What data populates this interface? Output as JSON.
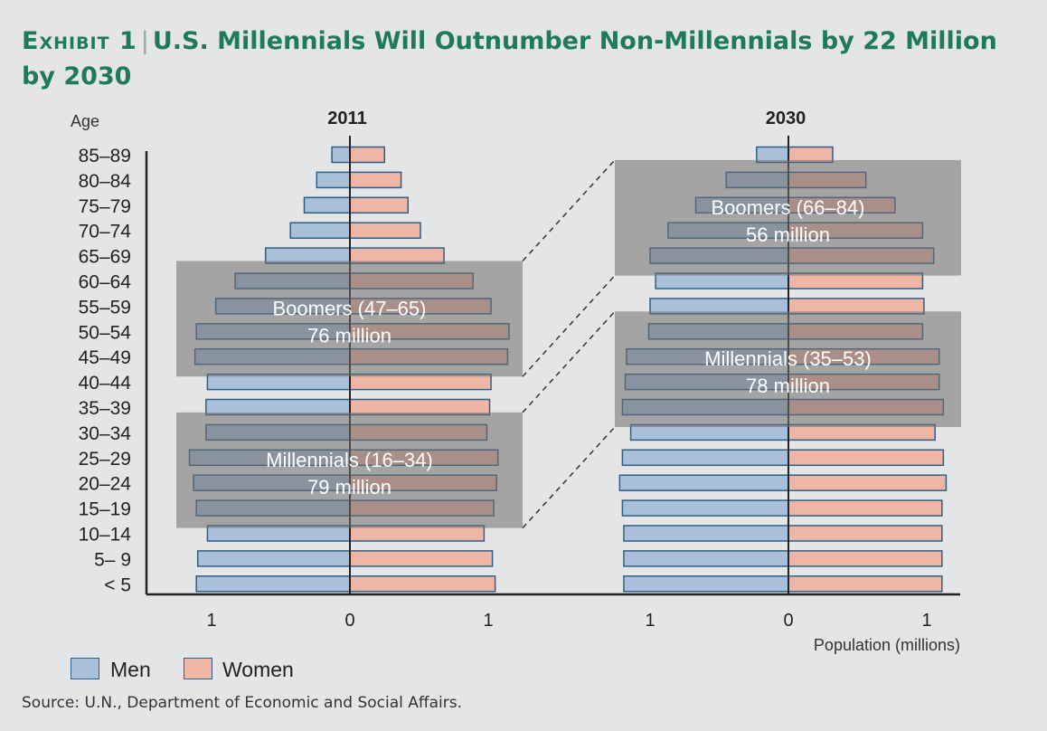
{
  "title": {
    "exhibit": "Exhibit 1",
    "text": "U.S. Millennials Will Outnumber Non-Millennials by 22 Million by 2030"
  },
  "chart_data": {
    "type": "bar",
    "orientation": "horizontal",
    "subtype": "population pyramid",
    "ylabel": "Age",
    "xlabel": "Population (millions)",
    "x_ticks": [
      "1",
      "0",
      "1"
    ],
    "categories": [
      "85–89",
      "80–84",
      "75–79",
      "70–74",
      "65–69",
      "60–64",
      "55–59",
      "50–54",
      "45–49",
      "40–44",
      "35–39",
      "30–34",
      "25–29",
      "20–24",
      "15–19",
      "10–14",
      "5– 9",
      "< 5"
    ],
    "panels": [
      {
        "title": "2011",
        "series": [
          {
            "name": "Men",
            "values": [
              0.13,
              0.24,
              0.33,
              0.43,
              0.61,
              0.83,
              0.97,
              1.11,
              1.12,
              1.03,
              1.04,
              1.04,
              1.16,
              1.13,
              1.11,
              1.03,
              1.1,
              1.11
            ]
          },
          {
            "name": "Women",
            "values": [
              0.25,
              0.37,
              0.42,
              0.51,
              0.68,
              0.89,
              1.02,
              1.15,
              1.14,
              1.02,
              1.01,
              0.99,
              1.07,
              1.06,
              1.04,
              0.97,
              1.03,
              1.05
            ]
          }
        ],
        "annotations": [
          {
            "lines": [
              "Boomers (47–65)",
              "76 million"
            ],
            "ages": [
              "60–64",
              "45–49"
            ]
          },
          {
            "lines": [
              "Millennials (16–34)",
              "79 million"
            ],
            "ages": [
              "30–34",
              "15–19"
            ]
          }
        ]
      },
      {
        "title": "2030",
        "series": [
          {
            "name": "Men",
            "values": [
              0.23,
              0.45,
              0.67,
              0.87,
              1.0,
              0.96,
              1.0,
              1.01,
              1.17,
              1.18,
              1.2,
              1.14,
              1.2,
              1.22,
              1.2,
              1.19,
              1.19,
              1.19
            ]
          },
          {
            "name": "Women",
            "values": [
              0.32,
              0.56,
              0.77,
              0.97,
              1.05,
              0.97,
              0.98,
              0.97,
              1.09,
              1.09,
              1.12,
              1.06,
              1.12,
              1.14,
              1.11,
              1.11,
              1.11,
              1.11
            ]
          }
        ],
        "annotations": [
          {
            "lines": [
              "Boomers (66–84)",
              "56 million"
            ],
            "ages": [
              "80–84",
              "65–69"
            ]
          },
          {
            "lines": [
              "Millennials (35–53)",
              "78 million"
            ],
            "ages": [
              "50–54",
              "35–39"
            ]
          }
        ]
      }
    ],
    "colors": {
      "men": "#a9bfda",
      "men_stroke": "#2d5f87",
      "women": "#efb5a5",
      "women_stroke": "#2d5f87",
      "highlight": "#6f6f6f"
    }
  },
  "legend": [
    {
      "label": "Men"
    },
    {
      "label": "Women"
    }
  ],
  "source": "Source: U.N., Department of Economic and Social Affairs."
}
